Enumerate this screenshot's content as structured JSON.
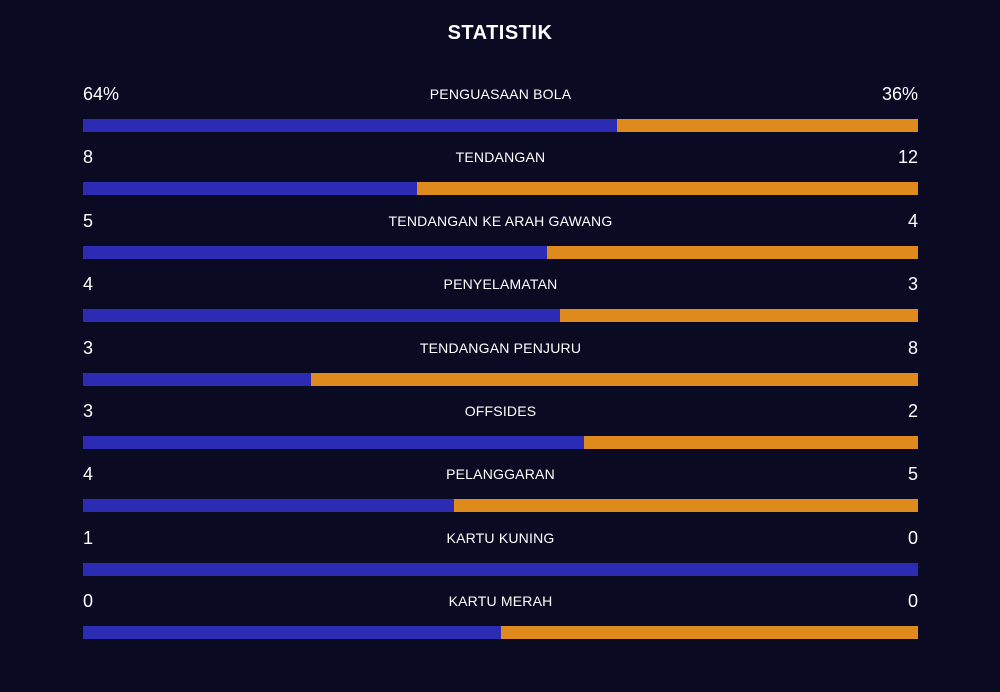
{
  "title": "STATISTIK",
  "colors": {
    "background": "#0a0a23",
    "home": "#2b2bb4",
    "away": "#df8a1c",
    "text": "#ffffff"
  },
  "stats": [
    {
      "label": "PENGUASAAN BOLA",
      "home": "64%",
      "away": "36%",
      "home_share": 0.64
    },
    {
      "label": "TENDANGAN",
      "home": "8",
      "away": "12",
      "home_share": 0.4
    },
    {
      "label": "TENDANGAN KE ARAH GAWANG",
      "home": "5",
      "away": "4",
      "home_share": 0.556
    },
    {
      "label": "PENYELAMATAN",
      "home": "4",
      "away": "3",
      "home_share": 0.571
    },
    {
      "label": "TENDANGAN PENJURU",
      "home": "3",
      "away": "8",
      "home_share": 0.273
    },
    {
      "label": "OFFSIDES",
      "home": "3",
      "away": "2",
      "home_share": 0.6
    },
    {
      "label": "PELANGGARAN",
      "home": "4",
      "away": "5",
      "home_share": 0.444
    },
    {
      "label": "KARTU KUNING",
      "home": "1",
      "away": "0",
      "home_share": 1.0
    },
    {
      "label": "KARTU MERAH",
      "home": "0",
      "away": "0",
      "home_share": 0.5
    }
  ]
}
